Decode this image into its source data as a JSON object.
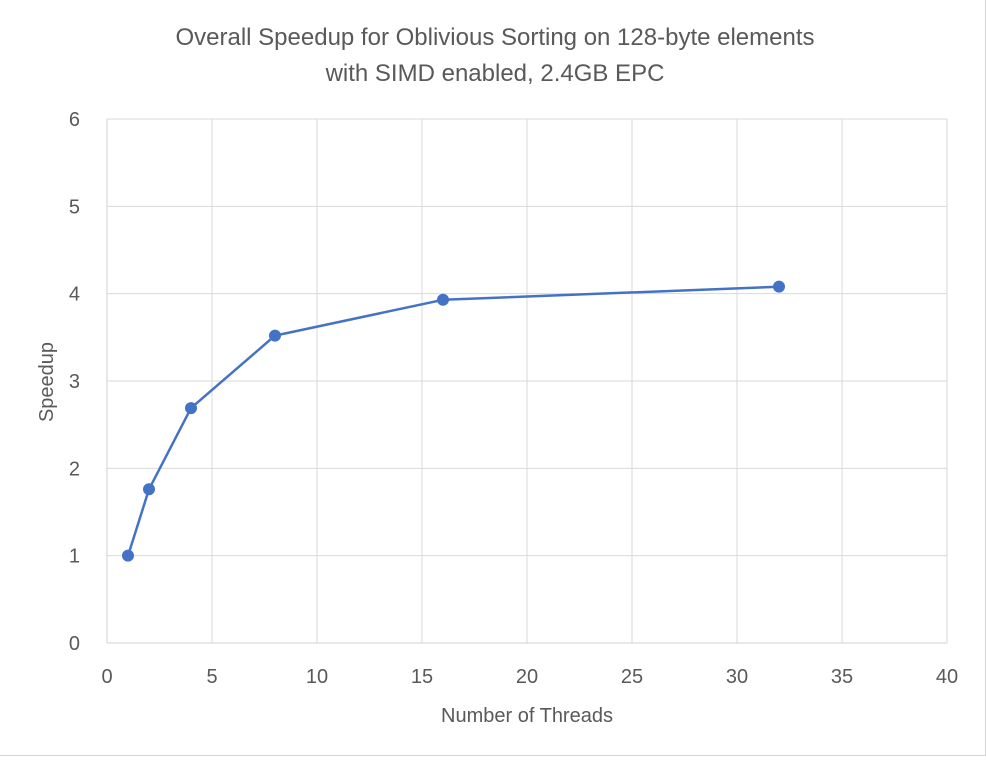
{
  "chart_data": {
    "type": "line",
    "title": "Overall Speedup for Oblivious Sorting on 128-byte elements",
    "subtitle": "with SIMD enabled, 2.4GB EPC",
    "xlabel": "Number of Threads",
    "ylabel": "Speedup",
    "xlim": [
      0,
      40
    ],
    "ylim": [
      0,
      6
    ],
    "x_ticks": [
      0,
      5,
      10,
      15,
      20,
      25,
      30,
      35,
      40
    ],
    "y_ticks": [
      0,
      1,
      2,
      3,
      4,
      5,
      6
    ],
    "grid": true,
    "legend": "none",
    "series": [
      {
        "x": [
          1,
          2,
          4,
          8,
          16,
          32
        ],
        "y": [
          1.0,
          1.76,
          2.69,
          3.52,
          3.93,
          4.08
        ],
        "color": "#4472c4"
      }
    ]
  }
}
